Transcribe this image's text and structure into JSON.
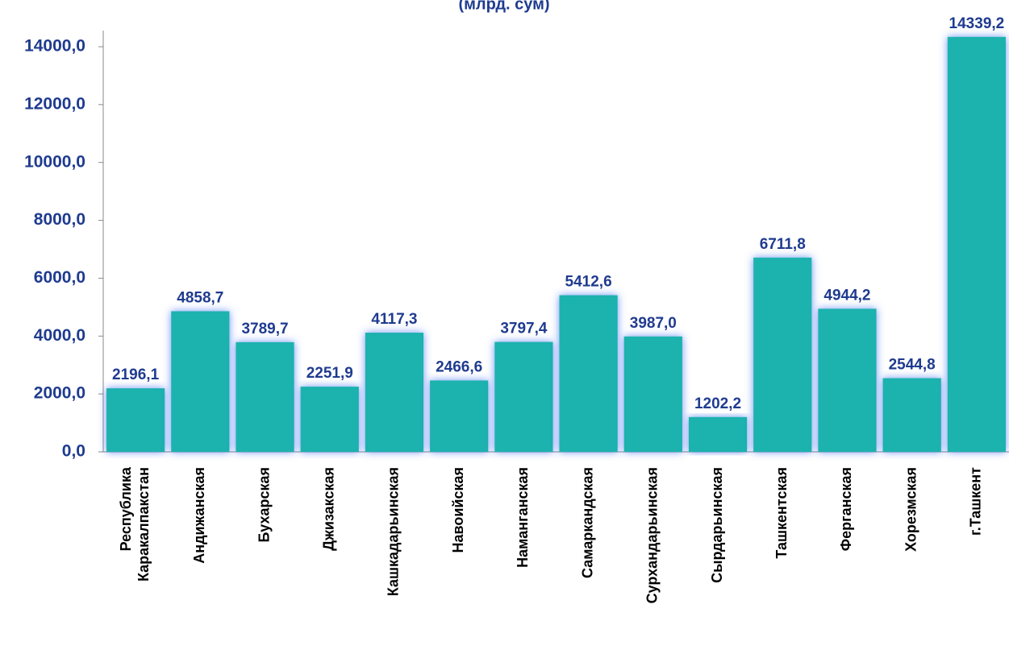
{
  "chart_data": {
    "type": "bar",
    "title": "(млрд. сум)",
    "categories": [
      "Республика Каракалпакстан",
      "Андижанская",
      "Бухарская",
      "Джизакская",
      "Кашкадарьинская",
      "Навоийская",
      "Наманганская",
      "Самаркандская",
      "Сурхандарьинская",
      "Сырдарьинская",
      "Ташкентская",
      "Ферганская",
      "Хорезмская",
      "г.Ташкент"
    ],
    "values": [
      2196.1,
      4858.7,
      3789.7,
      2251.9,
      4117.3,
      2466.6,
      3797.4,
      5412.6,
      3987.0,
      1202.2,
      6711.8,
      4944.2,
      2544.8,
      14339.2
    ],
    "value_labels": [
      "2196,1",
      "4858,7",
      "3789,7",
      "2251,9",
      "4117,3",
      "2466,6",
      "3797,4",
      "5412,6",
      "3987,0",
      "1202,2",
      "6711,8",
      "4944,2",
      "2544,8",
      "14339,2"
    ],
    "color": "#1fb2ae",
    "ylim": [
      0,
      14000
    ],
    "yticks": [
      {
        "value": 0,
        "label": "0,0"
      },
      {
        "value": 2000,
        "label": "2000,0"
      },
      {
        "value": 4000,
        "label": "4000,0"
      },
      {
        "value": 6000,
        "label": "6000,0"
      },
      {
        "value": 8000,
        "label": "8000,0"
      },
      {
        "value": 10000,
        "label": "10000,0"
      },
      {
        "value": 12000,
        "label": "12000,0"
      },
      {
        "value": 14000,
        "label": "14000,0"
      }
    ],
    "grid": false
  }
}
